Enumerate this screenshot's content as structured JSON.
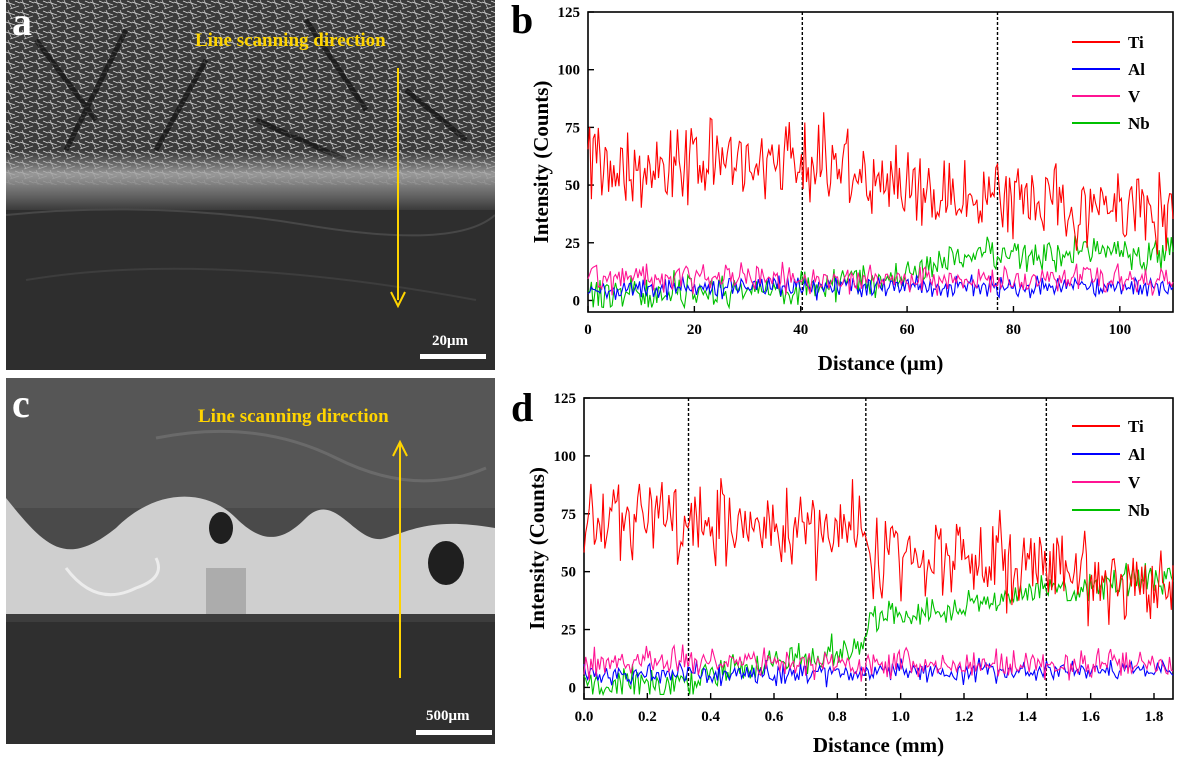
{
  "panel_a": {
    "letter": "a",
    "label": "Line scanning direction",
    "scale": "20μm"
  },
  "panel_c": {
    "letter": "c",
    "label": "Line scanning direction",
    "scale": "500μm"
  },
  "chart_data": [
    {
      "panel": "b",
      "type": "line",
      "xlabel": "Distance (μm)",
      "ylabel": "Intensity (Counts)",
      "xlim": [
        0,
        110
      ],
      "ylim": [
        -5,
        125
      ],
      "xticks": [
        0,
        20,
        40,
        60,
        80,
        100
      ],
      "xtick_labels": [
        "0",
        "20",
        "40",
        "60",
        "80",
        "100"
      ],
      "yticks": [
        0,
        25,
        50,
        75,
        100,
        125
      ],
      "ytick_labels": [
        "0",
        "25",
        "50",
        "75",
        "100",
        "125"
      ],
      "vlines": [
        40.3,
        77
      ],
      "legend_position": "top-right",
      "x": [
        0,
        5,
        10,
        15,
        20,
        25,
        30,
        35,
        40,
        45,
        50,
        55,
        60,
        65,
        70,
        75,
        80,
        85,
        90,
        95,
        100,
        105,
        110
      ],
      "series": [
        {
          "name": "Ti",
          "color": "#ff0000",
          "values": [
            61,
            59,
            58,
            58,
            60,
            60,
            61,
            62,
            58,
            59,
            57,
            54,
            51,
            48,
            45,
            43,
            42,
            42,
            41,
            40,
            40,
            40,
            40
          ]
        },
        {
          "name": "Al",
          "color": "#0000ff",
          "values": [
            5,
            5,
            5,
            5,
            5,
            6,
            6,
            6,
            6,
            6,
            6,
            6,
            6,
            6,
            6,
            6,
            6,
            6,
            6,
            6,
            6,
            6,
            6
          ]
        },
        {
          "name": "V",
          "color": "#ff1493",
          "values": [
            10,
            10,
            10,
            10,
            10,
            10,
            10,
            10,
            9,
            9,
            9,
            9,
            9,
            9,
            9,
            9,
            9,
            9,
            9,
            9,
            9,
            9,
            9
          ]
        },
        {
          "name": "Nb",
          "color": "#00c000",
          "values": [
            3,
            3,
            3,
            4,
            4,
            4,
            4,
            5,
            6,
            7,
            8,
            10,
            12,
            15,
            18,
            20,
            20,
            20,
            21,
            21,
            20,
            20,
            21
          ]
        }
      ]
    },
    {
      "panel": "d",
      "type": "line",
      "xlabel": "Distance (mm)",
      "ylabel": "Intensity (Counts)",
      "xlim": [
        0,
        1.86
      ],
      "ylim": [
        -5,
        125
      ],
      "xticks": [
        0,
        0.2,
        0.4,
        0.6,
        0.8,
        1.0,
        1.2,
        1.4,
        1.6,
        1.8
      ],
      "xtick_labels": [
        "0.0",
        "0.2",
        "0.4",
        "0.6",
        "0.8",
        "1.0",
        "1.2",
        "1.4",
        "1.6",
        "1.8"
      ],
      "yticks": [
        0,
        25,
        50,
        75,
        100,
        125
      ],
      "ytick_labels": [
        "0",
        "25",
        "50",
        "75",
        "100",
        "125"
      ],
      "vlines": [
        0.33,
        0.89,
        1.46
      ],
      "legend_position": "top-right",
      "x": [
        0,
        0.1,
        0.2,
        0.3,
        0.4,
        0.5,
        0.6,
        0.7,
        0.8,
        0.88,
        0.9,
        1.0,
        1.1,
        1.2,
        1.3,
        1.4,
        1.5,
        1.6,
        1.7,
        1.8,
        1.86
      ],
      "series": [
        {
          "name": "Ti",
          "color": "#ff0000",
          "values": [
            65,
            70,
            75,
            75,
            74,
            72,
            70,
            68,
            68,
            70,
            56,
            55,
            55,
            56,
            57,
            50,
            48,
            46,
            46,
            45,
            45
          ]
        },
        {
          "name": "Al",
          "color": "#0000ff",
          "values": [
            6,
            6,
            6,
            6,
            6,
            6,
            6,
            6,
            6,
            6,
            7,
            7,
            7,
            7,
            7,
            7,
            7,
            7,
            7,
            7,
            7
          ]
        },
        {
          "name": "V",
          "color": "#ff1493",
          "values": [
            10,
            11,
            11,
            11,
            11,
            11,
            11,
            10,
            10,
            10,
            10,
            10,
            10,
            10,
            10,
            10,
            10,
            10,
            10,
            10,
            10
          ]
        },
        {
          "name": "Nb",
          "color": "#00c000",
          "values": [
            1,
            1,
            1,
            2,
            6,
            9,
            11,
            13,
            15,
            17,
            30,
            32,
            32,
            35,
            37,
            40,
            42,
            43,
            45,
            47,
            48
          ]
        }
      ]
    }
  ]
}
